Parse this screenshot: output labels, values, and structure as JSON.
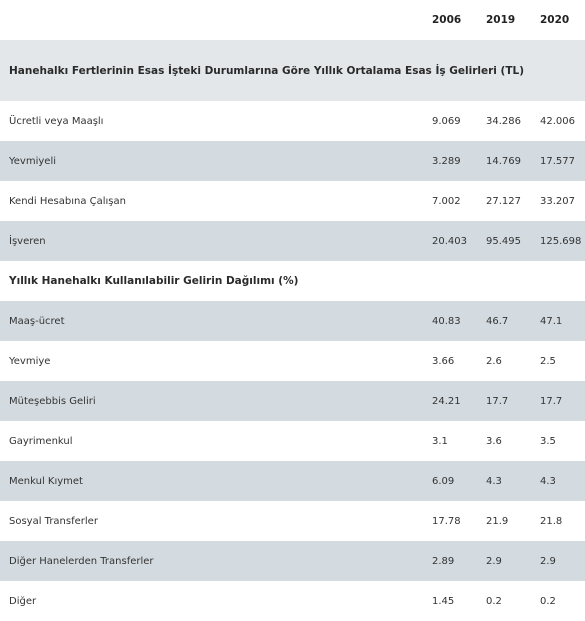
{
  "columns": [
    "2006",
    "2019",
    "2020"
  ],
  "sections": [
    {
      "title": "Hanehalkı Fertlerinin Esas İşteki Durumlarına Göre Yıllık Ortalama Esas İş Gelirleri (TL)",
      "rows": [
        {
          "label": "Ücretli veya Maaşlı",
          "values": [
            "9.069",
            "34.286",
            "42.006"
          ]
        },
        {
          "label": "Yevmiyeli",
          "values": [
            "3.289",
            "14.769",
            "17.577"
          ]
        },
        {
          "label": "Kendi Hesabına Çalışan",
          "values": [
            "7.002",
            "27.127",
            "33.207"
          ]
        },
        {
          "label": "İşveren",
          "values": [
            "20.403",
            "95.495",
            "125.698"
          ]
        }
      ]
    },
    {
      "title": "Yıllık Hanehalkı Kullanılabilir Gelirin Dağılımı (%)",
      "rows": [
        {
          "label": "Maaş-ücret",
          "values": [
            "40.83",
            "46.7",
            "47.1"
          ]
        },
        {
          "label": "Yevmiye",
          "values": [
            "3.66",
            "2.6",
            "2.5"
          ]
        },
        {
          "label": "Müteşebbis Geliri",
          "values": [
            "24.21",
            "17.7",
            "17.7"
          ]
        },
        {
          "label": "Gayrimenkul",
          "values": [
            "3.1",
            "3.6",
            "3.5"
          ]
        },
        {
          "label": "Menkul Kıymet",
          "values": [
            "6.09",
            "4.3",
            "4.3"
          ]
        },
        {
          "label": "Sosyal Transferler",
          "values": [
            "17.78",
            "21.9",
            "21.8"
          ]
        },
        {
          "label": "Diğer Hanelerden Transferler",
          "values": [
            "2.89",
            "2.9",
            "2.9"
          ]
        },
        {
          "label": "Diğer",
          "values": [
            "1.45",
            "0.2",
            "0.2"
          ]
        }
      ]
    }
  ]
}
